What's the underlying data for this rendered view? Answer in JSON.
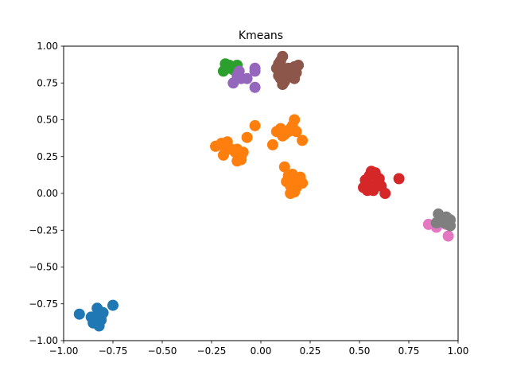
{
  "chart_data": {
    "type": "scatter",
    "title": "Kmeans",
    "xlabel": "",
    "ylabel": "",
    "xlim": [
      -1.0,
      1.0
    ],
    "ylim": [
      -1.0,
      1.0
    ],
    "grid": false,
    "legend": "none",
    "xticks": [
      -1.0,
      -0.75,
      -0.5,
      -0.25,
      0.0,
      0.25,
      0.5,
      0.75,
      1.0
    ],
    "yticks": [
      -1.0,
      -0.75,
      -0.5,
      -0.25,
      0.0,
      0.25,
      0.5,
      0.75,
      1.0
    ],
    "xtick_labels": [
      "−1.00",
      "−0.75",
      "−0.50",
      "−0.25",
      "0.00",
      "0.25",
      "0.50",
      "0.75",
      "1.00"
    ],
    "ytick_labels": [
      "−1.00",
      "−0.75",
      "−0.50",
      "−0.25",
      "0.00",
      "0.25",
      "0.50",
      "0.75",
      "1.00"
    ],
    "series": [
      {
        "color": "#1f77b4",
        "points": [
          [
            -0.92,
            -0.82
          ],
          [
            -0.86,
            -0.84
          ],
          [
            -0.84,
            -0.86
          ],
          [
            -0.82,
            -0.8
          ],
          [
            -0.8,
            -0.81
          ],
          [
            -0.83,
            -0.84
          ],
          [
            -0.85,
            -0.88
          ],
          [
            -0.81,
            -0.86
          ],
          [
            -0.82,
            -0.9
          ],
          [
            -0.84,
            -0.87
          ],
          [
            -0.75,
            -0.76
          ],
          [
            -0.81,
            -0.83
          ],
          [
            -0.83,
            -0.78
          ]
        ]
      },
      {
        "color": "#ff7f0e",
        "points": [
          [
            -0.23,
            0.32
          ],
          [
            -0.2,
            0.34
          ],
          [
            -0.18,
            0.29
          ],
          [
            -0.17,
            0.35
          ],
          [
            -0.19,
            0.26
          ],
          [
            -0.15,
            0.3
          ],
          [
            -0.13,
            0.28
          ],
          [
            -0.12,
            0.22
          ],
          [
            -0.1,
            0.25
          ],
          [
            -0.09,
            0.28
          ],
          [
            -0.12,
            0.3
          ],
          [
            -0.07,
            0.38
          ],
          [
            -0.03,
            0.46
          ],
          [
            -0.1,
            0.23
          ],
          [
            0.06,
            0.33
          ],
          [
            0.08,
            0.42
          ],
          [
            0.1,
            0.44
          ],
          [
            0.12,
            0.4
          ],
          [
            0.14,
            0.42
          ],
          [
            0.16,
            0.46
          ],
          [
            0.17,
            0.5
          ],
          [
            0.15,
            0.44
          ],
          [
            0.18,
            0.42
          ],
          [
            0.11,
            0.39
          ],
          [
            0.21,
            0.36
          ],
          [
            0.12,
            0.18
          ],
          [
            0.13,
            0.08
          ],
          [
            0.14,
            0.12
          ],
          [
            0.15,
            0.05
          ],
          [
            0.16,
            0.02
          ],
          [
            0.17,
            0.09
          ],
          [
            0.18,
            0.04
          ],
          [
            0.19,
            0.07
          ],
          [
            0.2,
            0.11
          ],
          [
            0.21,
            0.07
          ],
          [
            0.15,
            0.0
          ],
          [
            0.17,
            0.01
          ],
          [
            0.16,
            0.13
          ]
        ]
      },
      {
        "color": "#2ca02c",
        "points": [
          [
            -0.18,
            0.88
          ],
          [
            -0.17,
            0.85
          ],
          [
            -0.16,
            0.87
          ],
          [
            -0.14,
            0.84
          ],
          [
            -0.12,
            0.87
          ],
          [
            -0.19,
            0.83
          ],
          [
            -0.15,
            0.86
          ]
        ]
      },
      {
        "color": "#d62728",
        "points": [
          [
            0.52,
            0.04
          ],
          [
            0.53,
            0.09
          ],
          [
            0.55,
            0.12
          ],
          [
            0.56,
            0.15
          ],
          [
            0.58,
            0.14
          ],
          [
            0.54,
            0.02
          ],
          [
            0.57,
            0.02
          ],
          [
            0.59,
            0.07
          ],
          [
            0.61,
            0.05
          ],
          [
            0.63,
            0.0
          ],
          [
            0.7,
            0.1
          ],
          [
            0.56,
            0.05
          ],
          [
            0.6,
            0.1
          ]
        ]
      },
      {
        "color": "#9467bd",
        "points": [
          [
            -0.14,
            0.75
          ],
          [
            -0.12,
            0.8
          ],
          [
            -0.11,
            0.83
          ],
          [
            -0.1,
            0.78
          ],
          [
            -0.07,
            0.78
          ],
          [
            -0.03,
            0.85
          ],
          [
            -0.03,
            0.72
          ],
          [
            -0.03,
            0.83
          ]
        ]
      },
      {
        "color": "#8c564b",
        "points": [
          [
            0.08,
            0.85
          ],
          [
            0.09,
            0.88
          ],
          [
            0.1,
            0.9
          ],
          [
            0.11,
            0.93
          ],
          [
            0.12,
            0.84
          ],
          [
            0.13,
            0.8
          ],
          [
            0.14,
            0.85
          ],
          [
            0.1,
            0.78
          ],
          [
            0.11,
            0.74
          ],
          [
            0.12,
            0.76
          ],
          [
            0.17,
            0.86
          ],
          [
            0.18,
            0.82
          ],
          [
            0.19,
            0.87
          ],
          [
            0.17,
            0.78
          ],
          [
            0.09,
            0.8
          ]
        ]
      },
      {
        "color": "#e377c2",
        "points": [
          [
            0.85,
            -0.21
          ],
          [
            0.89,
            -0.23
          ],
          [
            0.95,
            -0.29
          ],
          [
            0.94,
            -0.21
          ]
        ]
      },
      {
        "color": "#7f7f7f",
        "points": [
          [
            0.9,
            -0.14
          ],
          [
            0.89,
            -0.2
          ],
          [
            0.92,
            -0.18
          ],
          [
            0.94,
            -0.16
          ],
          [
            0.96,
            -0.18
          ],
          [
            0.96,
            -0.22
          ],
          [
            0.93,
            -0.2
          ]
        ]
      }
    ]
  }
}
